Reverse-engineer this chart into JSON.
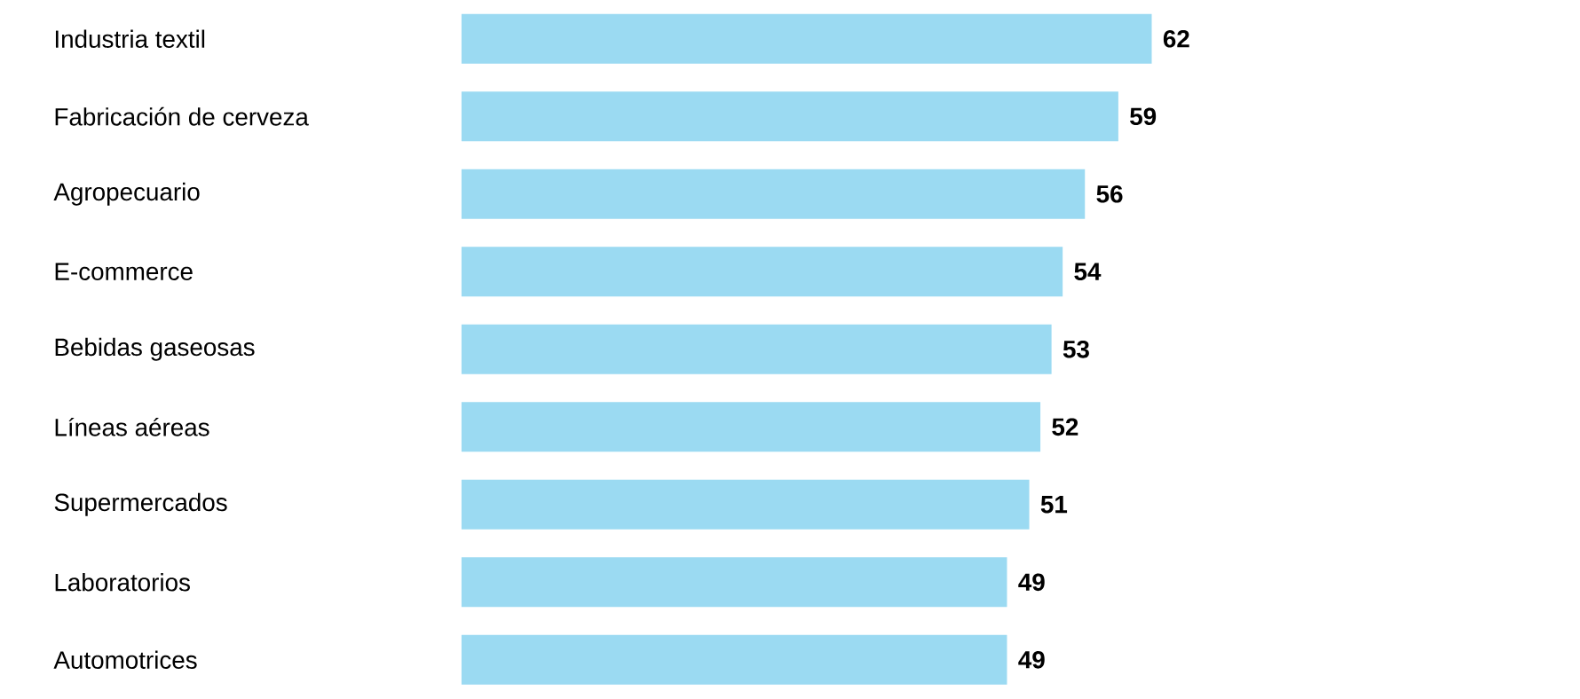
{
  "chart_data": {
    "type": "bar",
    "orientation": "horizontal",
    "categories": [
      "Industria textil",
      "Fabricación de cerveza",
      "Agropecuario",
      "E-commerce",
      "Bebidas gaseosas",
      "Líneas aéreas",
      "Supermercados",
      "Laboratorios",
      "Automotrices"
    ],
    "values": [
      62,
      59,
      56,
      54,
      53,
      52,
      51,
      49,
      49
    ],
    "color": "#9bdaf2",
    "data_labels": true
  }
}
